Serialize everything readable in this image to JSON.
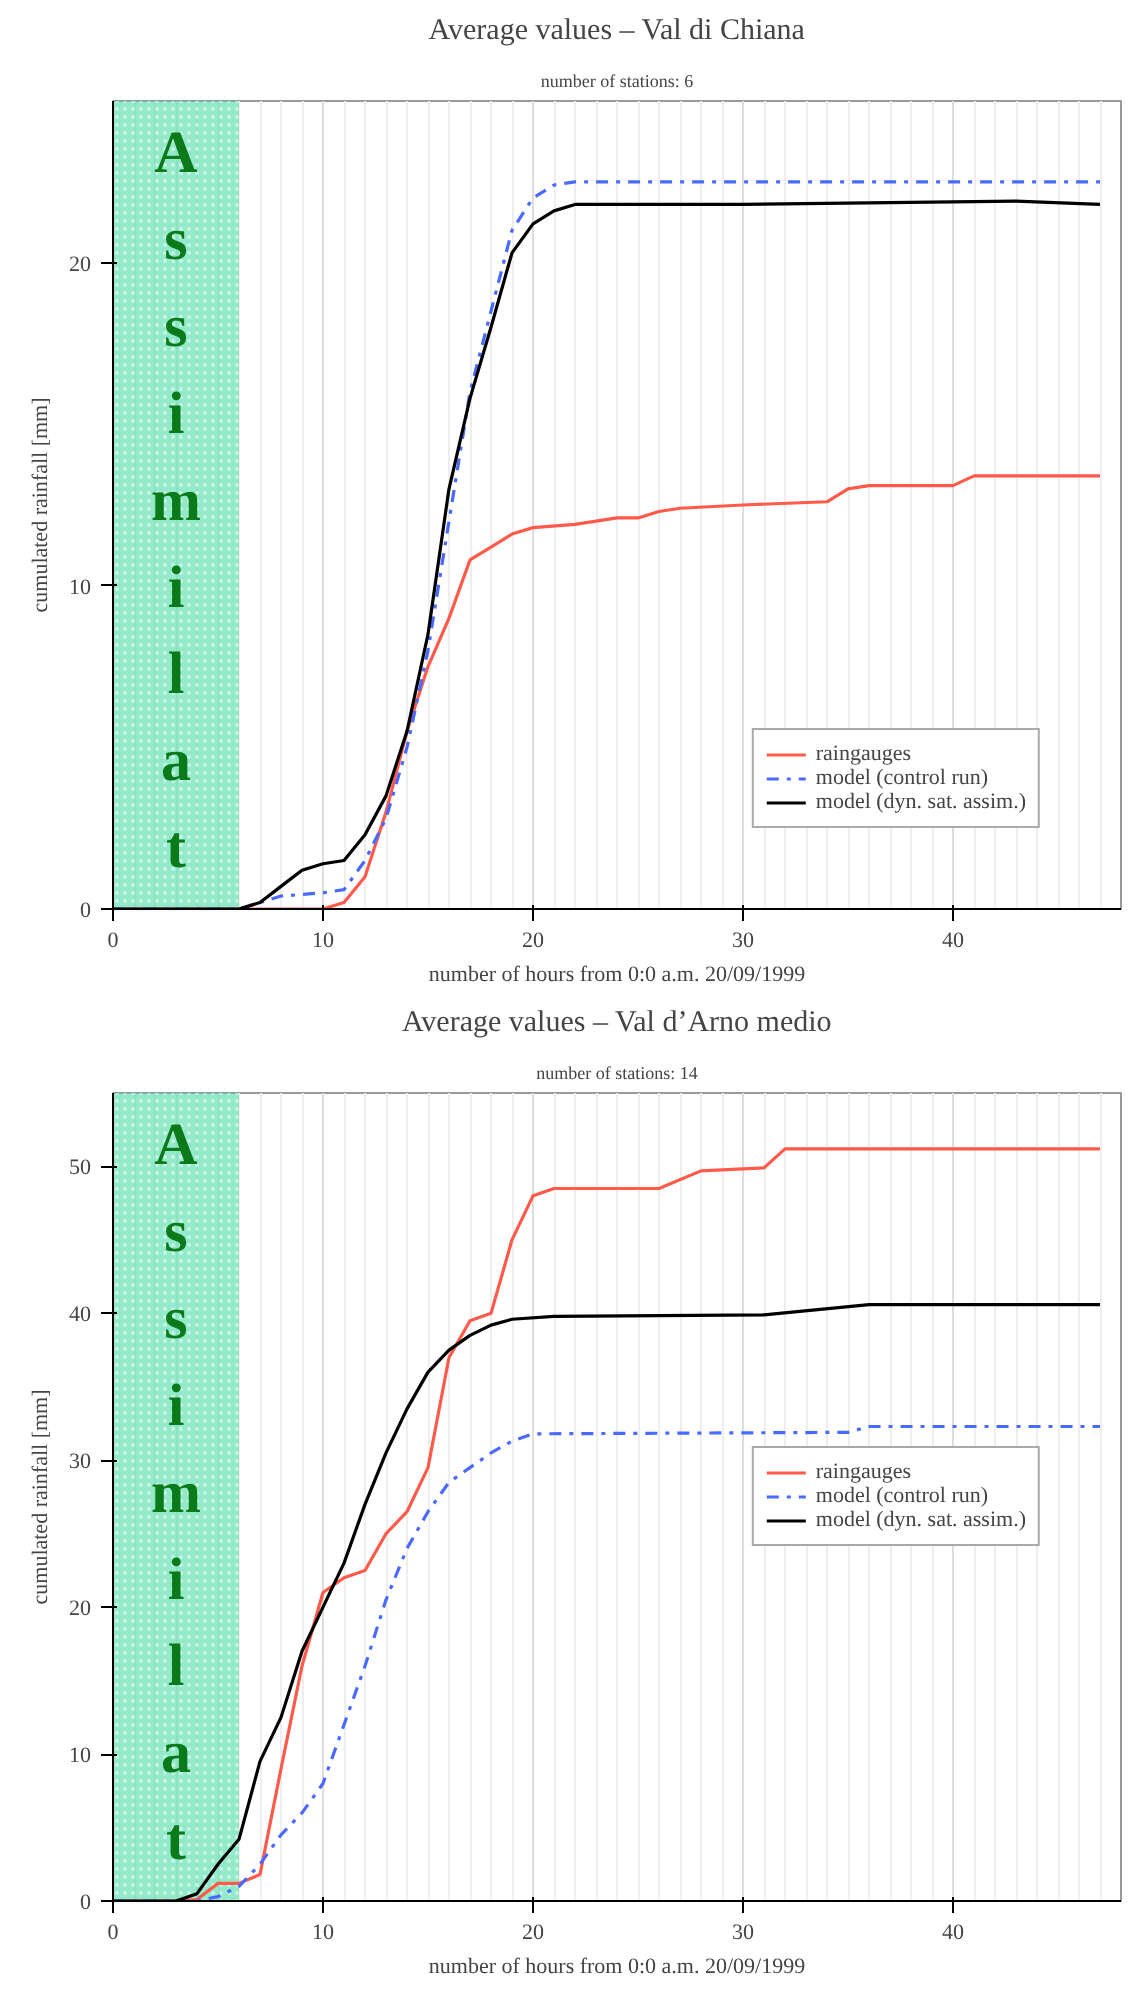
{
  "chart_data": [
    {
      "type": "line",
      "title": "Average values – Val di Chiana",
      "subtitle": "number of stations: 6",
      "xlabel": "number of hours from 0:0 a.m. 20/09/1999",
      "ylabel": "cumulated rainfall [mm]",
      "xlim": [
        0,
        48
      ],
      "ylim": [
        0,
        25
      ],
      "xticks": [
        0,
        10,
        20,
        30,
        40
      ],
      "yticks": [
        0,
        10,
        20
      ],
      "grid": "x",
      "legend": "bottom right",
      "marker": "none",
      "bands": [
        {
          "axis": "x",
          "from": 0,
          "to": 6,
          "label": "Assimilat",
          "color": "#3ad8a0"
        }
      ],
      "series": [
        {
          "name": "raingauges",
          "color": "#ff5a4a",
          "line_style": "solid",
          "x": [
            0,
            10,
            11,
            12,
            13,
            14,
            15,
            16,
            17,
            18,
            19,
            20,
            22,
            24,
            25,
            26,
            27,
            30,
            34,
            35,
            36,
            40,
            41,
            47
          ],
          "values": [
            0,
            0,
            0.2,
            1,
            3,
            5.5,
            7.5,
            9,
            10.8,
            11.2,
            11.6,
            11.8,
            11.9,
            12.1,
            12.1,
            12.3,
            12.4,
            12.5,
            12.6,
            13,
            13.1,
            13.1,
            13.4,
            13.4
          ]
        },
        {
          "name": "model (control run)",
          "color": "#4a6aff",
          "line_style": "dashdot",
          "x": [
            0,
            6,
            7,
            8,
            10,
            11,
            12,
            13,
            14,
            15,
            16,
            17,
            18,
            19,
            20,
            21,
            22,
            47
          ],
          "values": [
            0,
            0,
            0.2,
            0.4,
            0.5,
            0.6,
            1.5,
            2.8,
            5,
            8,
            12,
            16,
            18.5,
            21,
            22,
            22.4,
            22.5,
            22.5
          ]
        },
        {
          "name": "model (dyn. sat. assim.)",
          "color": "#000000",
          "line_style": "solid",
          "x": [
            0,
            6,
            7,
            8,
            9,
            10,
            11,
            12,
            13,
            14,
            15,
            16,
            17,
            18,
            19,
            20,
            21,
            22,
            30,
            43,
            47
          ],
          "values": [
            0,
            0,
            0.2,
            0.7,
            1.2,
            1.4,
            1.5,
            2.3,
            3.5,
            5.5,
            8.5,
            13,
            15.8,
            18,
            20.3,
            21.2,
            21.6,
            21.8,
            21.8,
            21.9,
            21.8
          ]
        }
      ]
    },
    {
      "type": "line",
      "title": "Average values – Val d’Arno medio",
      "subtitle": "number of stations: 14",
      "xlabel": "number of hours from 0:0 a.m. 20/09/1999",
      "ylabel": "cumulated rainfall [mm]",
      "xlim": [
        0,
        48
      ],
      "ylim": [
        0,
        55
      ],
      "xticks": [
        0,
        10,
        20,
        30,
        40
      ],
      "yticks": [
        0,
        10,
        20,
        30,
        40,
        50
      ],
      "grid": "x",
      "legend": "center right",
      "marker": "none",
      "bands": [
        {
          "axis": "x",
          "from": 0,
          "to": 6,
          "label": "Assimilat",
          "color": "#3ad8a0"
        }
      ],
      "series": [
        {
          "name": "raingauges",
          "color": "#ff5a4a",
          "line_style": "solid",
          "x": [
            0,
            3,
            4,
            5,
            6,
            7,
            8,
            9,
            10,
            11,
            12,
            13,
            14,
            15,
            16,
            17,
            18,
            19,
            20,
            21,
            26,
            28,
            31,
            32,
            47
          ],
          "values": [
            0,
            0,
            0.1,
            1.2,
            1.2,
            1.8,
            9,
            16,
            21,
            22,
            22.5,
            25,
            26.5,
            29.5,
            37,
            39.5,
            40,
            45,
            48,
            48.5,
            48.5,
            49.7,
            49.9,
            51.2,
            51.2
          ]
        },
        {
          "name": "model (control run)",
          "color": "#4a6aff",
          "line_style": "dashdot",
          "x": [
            0,
            4,
            5,
            6,
            7,
            8,
            9,
            10,
            11,
            12,
            13,
            14,
            15,
            16,
            17,
            18,
            19,
            20,
            35,
            36,
            47
          ],
          "values": [
            0,
            0,
            0.3,
            1,
            2.5,
            4.5,
            6,
            8,
            12,
            16,
            20.5,
            24,
            26.5,
            28.5,
            29.5,
            30.5,
            31.3,
            31.8,
            31.9,
            32.3,
            32.3
          ]
        },
        {
          "name": "model (dyn. sat. assim.)",
          "color": "#000000",
          "line_style": "solid",
          "x": [
            0,
            3,
            4,
            5,
            6,
            7,
            8,
            9,
            10,
            11,
            12,
            13,
            14,
            15,
            16,
            17,
            18,
            19,
            21,
            31,
            36,
            47
          ],
          "values": [
            0,
            0,
            0.5,
            2.5,
            4.2,
            9.5,
            12.5,
            17,
            20,
            23,
            27,
            30.5,
            33.5,
            36,
            37.5,
            38.5,
            39.2,
            39.6,
            39.8,
            39.9,
            40.6,
            40.6
          ]
        }
      ]
    }
  ]
}
